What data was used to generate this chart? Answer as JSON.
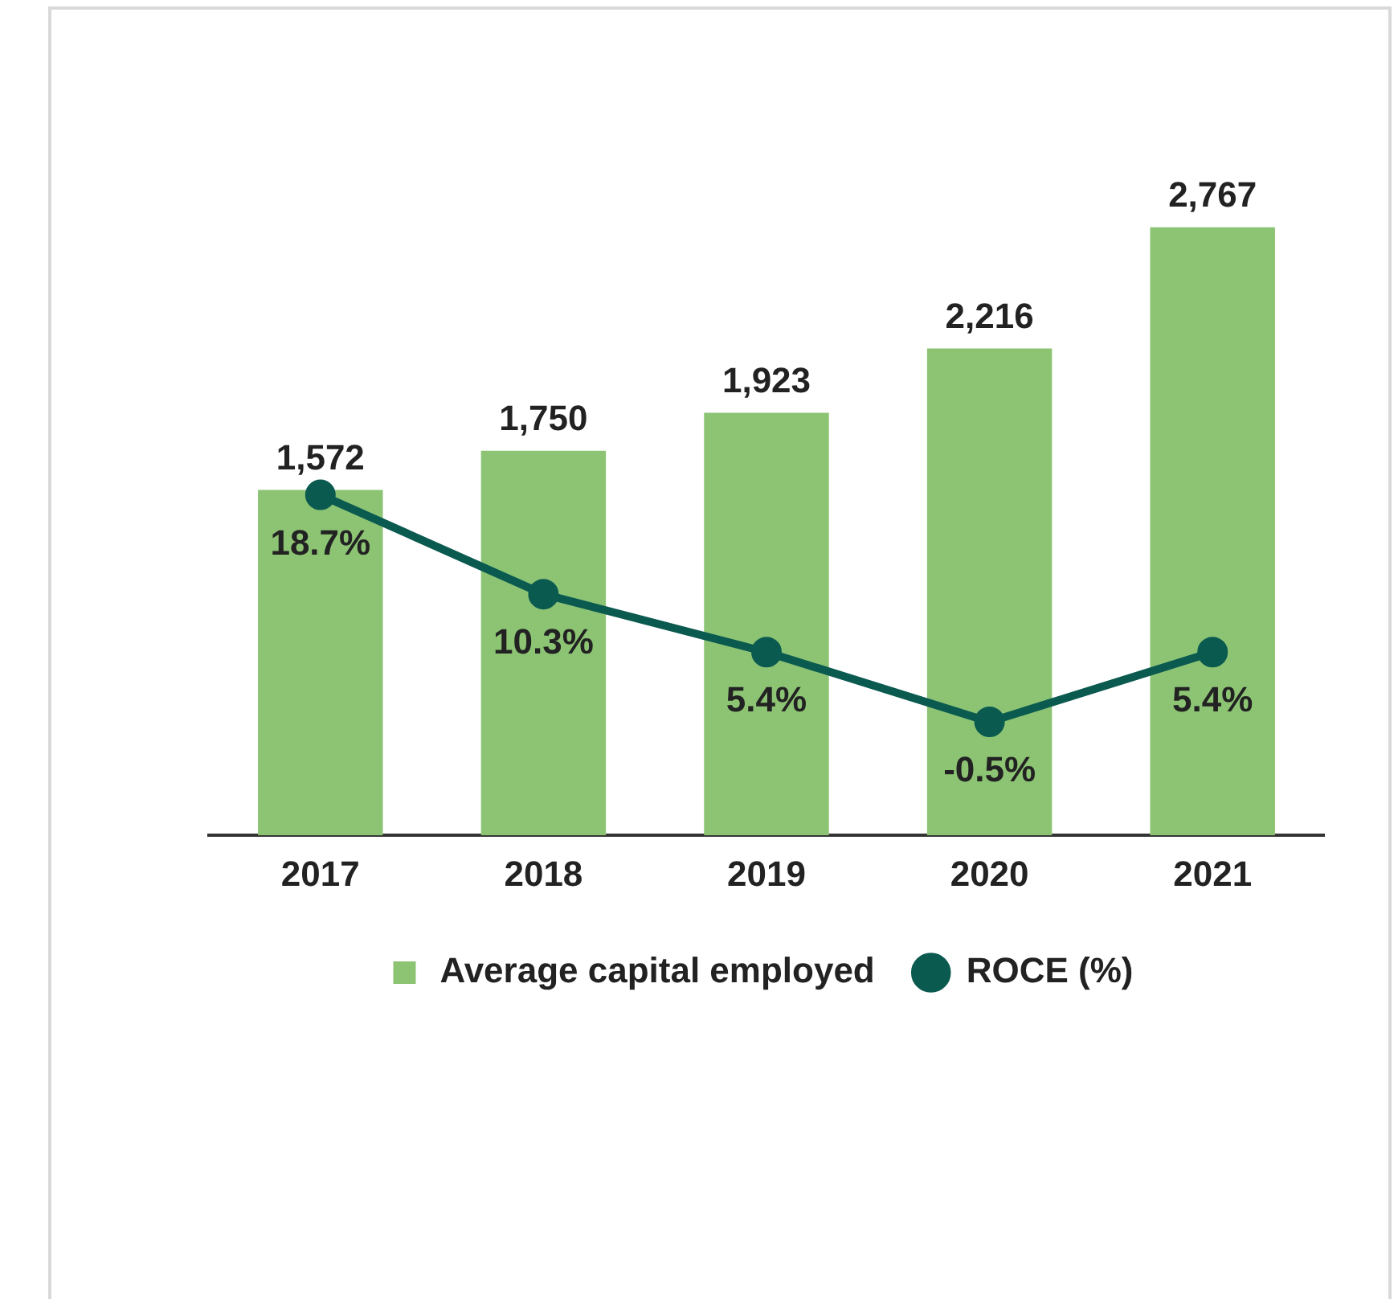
{
  "chart_data": {
    "type": "bar",
    "categories": [
      "2017",
      "2018",
      "2019",
      "2020",
      "2021"
    ],
    "series": [
      {
        "name": "Average capital employed",
        "color": "#8cc474",
        "values": [
          1572,
          1750,
          1923,
          2216,
          2767
        ],
        "value_labels": [
          "1,572",
          "1,750",
          "1,923",
          "2,216",
          "2,767"
        ]
      },
      {
        "name": "ROCE (%)",
        "type": "line",
        "axis": "y2",
        "color": "#0b5a50",
        "values": [
          18.7,
          10.3,
          5.4,
          -0.5,
          5.4
        ],
        "value_labels": [
          "18.7%",
          "10.3%",
          "5.4%",
          "-0.5%",
          "5.4%"
        ]
      }
    ],
    "tick_labels": "x",
    "grid": false,
    "legend": "bottom",
    "marker": "circle",
    "line_style": "solid"
  }
}
